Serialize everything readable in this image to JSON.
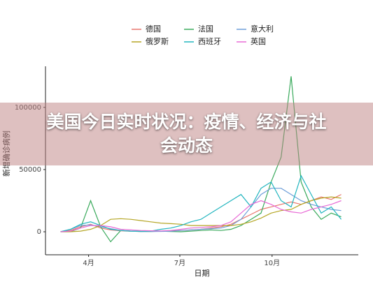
{
  "banner": {
    "title": "美国今日实时状况：疫情、经济与社会动态"
  },
  "chart_data": {
    "type": "line",
    "x_label": "日期",
    "y_label": "新增确诊病例",
    "x": [
      -28,
      -18,
      -8,
      2,
      12,
      22,
      32,
      42,
      52,
      62,
      72,
      82,
      92,
      102,
      112,
      122,
      132,
      142,
      152,
      162,
      172,
      182,
      192,
      202,
      212,
      222,
      232,
      242,
      252
    ],
    "xlim": [
      -43,
      269
    ],
    "xticks": [
      {
        "value": 0,
        "label": "4月"
      },
      {
        "value": 91,
        "label": "7月"
      },
      {
        "value": 183,
        "label": "10月"
      }
    ],
    "ylim": [
      -18500,
      133000
    ],
    "yticks": [
      0,
      50000,
      100000
    ],
    "grid": false,
    "series": [
      {
        "name": "德国",
        "color": "#e8766d",
        "values": [
          0,
          1000,
          4000,
          6000,
          3000,
          1500,
          800,
          400,
          300,
          400,
          500,
          800,
          1000,
          1500,
          2000,
          3000,
          4000,
          6000,
          10000,
          14000,
          18000,
          20000,
          22000,
          24000,
          22000,
          25000,
          28000,
          26000,
          30000
        ]
      },
      {
        "name": "法国",
        "color": "#3aaa5c",
        "values": [
          0,
          100,
          3000,
          25000,
          4000,
          -8000,
          1000,
          500,
          300,
          200,
          500,
          200,
          0,
          500,
          1000,
          1500,
          1000,
          2000,
          5000,
          10000,
          15000,
          40000,
          60000,
          125000,
          40000,
          20000,
          10000,
          15000,
          12000
        ]
      },
      {
        "name": "意大利",
        "color": "#6d9ed8",
        "values": [
          0,
          2000,
          5000,
          5500,
          4000,
          2500,
          1000,
          500,
          200,
          200,
          300,
          400,
          1000,
          1500,
          2000,
          2500,
          3000,
          5000,
          10000,
          20000,
          30000,
          35000,
          35000,
          30000,
          25000,
          22000,
          20000,
          18000,
          17000
        ]
      },
      {
        "name": "俄罗斯",
        "color": "#b5a625",
        "values": [
          0,
          0,
          500,
          2000,
          5000,
          10000,
          10500,
          10000,
          9000,
          8000,
          7000,
          6500,
          6000,
          5000,
          5000,
          5000,
          5000,
          5000,
          6000,
          8000,
          11000,
          15000,
          17000,
          18000,
          22000,
          25000,
          27000,
          28000,
          27000
        ]
      },
      {
        "name": "西班牙",
        "color": "#22b5bf",
        "values": [
          0,
          2000,
          6000,
          8000,
          5000,
          2000,
          1000,
          500,
          300,
          500,
          2000,
          3000,
          5000,
          8000,
          10000,
          15000,
          20000,
          25000,
          30000,
          20000,
          35000,
          40000,
          25000,
          20000,
          45000,
          30000,
          15000,
          20000,
          10000
        ]
      },
      {
        "name": "英国",
        "color": "#e86bd6",
        "values": [
          0,
          500,
          3000,
          5000,
          5000,
          4000,
          2000,
          1500,
          1000,
          800,
          700,
          1000,
          2000,
          3000,
          3500,
          4000,
          5000,
          8000,
          15000,
          22000,
          25000,
          22000,
          18000,
          16000,
          15000,
          18000,
          20000,
          22000,
          25000
        ]
      }
    ]
  }
}
